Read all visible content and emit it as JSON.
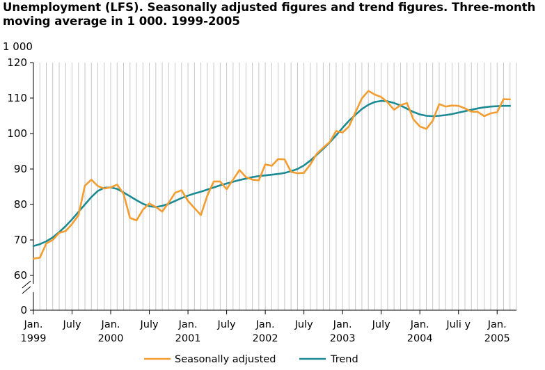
{
  "title_line1": "Unemployment (LFS). Seasonally adjusted figures and trend figures. Three-month",
  "title_line2": "moving average in 1 000. 1999-2005",
  "chart_data": {
    "type": "line",
    "title": "Unemployment (LFS). Seasonally adjusted figures and trend figures. Three-month moving average in 1 000. 1999-2005",
    "ylabel": "1 000",
    "xlabel": "",
    "ylim": [
      0,
      120
    ],
    "y_break": [
      0,
      60
    ],
    "yticks": [
      0,
      60,
      70,
      80,
      90,
      100,
      110,
      120
    ],
    "x_unit": "months since January 1999",
    "x_ticks": [
      {
        "pos": 0,
        "line1": "Jan.",
        "line2": "1999"
      },
      {
        "pos": 6,
        "line1": "July",
        "line2": ""
      },
      {
        "pos": 12,
        "line1": "Jan.",
        "line2": "2000"
      },
      {
        "pos": 18,
        "line1": "July",
        "line2": ""
      },
      {
        "pos": 24,
        "line1": "Jan.",
        "line2": "2001"
      },
      {
        "pos": 30,
        "line1": "July",
        "line2": ""
      },
      {
        "pos": 36,
        "line1": "Jan.",
        "line2": "2002"
      },
      {
        "pos": 42,
        "line1": "July",
        "line2": ""
      },
      {
        "pos": 48,
        "line1": "Jan.",
        "line2": "2003"
      },
      {
        "pos": 54,
        "line1": "July",
        "line2": ""
      },
      {
        "pos": 60,
        "line1": "Jan.",
        "line2": "2004"
      },
      {
        "pos": 66,
        "line1": "Juli y",
        "line2": ""
      },
      {
        "pos": 72,
        "line1": "Jan.",
        "line2": "2005"
      }
    ],
    "x_max": 75,
    "grid": "vertical",
    "legend_position": "bottom",
    "series": [
      {
        "name": "Seasonally adjusted",
        "color": "#f39c2f",
        "values": [
          64.7,
          65.0,
          69.0,
          70.0,
          72.0,
          72.5,
          74.5,
          77.0,
          85.3,
          87.0,
          85.2,
          84.5,
          84.8,
          85.6,
          83.0,
          76.2,
          75.5,
          78.5,
          80.3,
          79.3,
          78.0,
          80.5,
          83.3,
          84.0,
          81.0,
          79.0,
          77.0,
          82.5,
          86.5,
          86.5,
          84.3,
          87.0,
          89.7,
          87.7,
          87.0,
          86.8,
          91.3,
          90.9,
          92.8,
          92.7,
          89.2,
          88.8,
          88.9,
          91.3,
          94.3,
          96.0,
          97.6,
          100.7,
          100.3,
          102.0,
          106.0,
          109.9,
          112.0,
          111.0,
          110.3,
          108.8,
          106.7,
          108.0,
          108.6,
          104.0,
          102.0,
          101.3,
          103.6,
          108.3,
          107.6,
          107.9,
          107.8,
          107.1,
          106.2,
          106.1,
          104.9,
          105.7,
          106.0,
          109.7,
          109.6
        ]
      },
      {
        "name": "Trend",
        "color": "#1b8a92",
        "values": [
          68.3,
          68.8,
          69.6,
          70.7,
          72.2,
          73.9,
          75.8,
          77.9,
          80.0,
          82.1,
          83.8,
          84.7,
          84.8,
          84.4,
          83.4,
          82.3,
          81.2,
          80.2,
          79.5,
          79.3,
          79.6,
          80.2,
          81.0,
          81.8,
          82.5,
          83.1,
          83.6,
          84.2,
          84.8,
          85.4,
          85.9,
          86.4,
          86.9,
          87.3,
          87.7,
          88.0,
          88.2,
          88.4,
          88.6,
          88.9,
          89.4,
          90.0,
          91.0,
          92.4,
          94.0,
          95.7,
          97.5,
          99.5,
          101.6,
          103.6,
          105.3,
          106.9,
          108.1,
          108.9,
          109.2,
          109.1,
          108.6,
          107.9,
          107.0,
          106.1,
          105.4,
          105.0,
          104.9,
          105.0,
          105.2,
          105.5,
          105.9,
          106.3,
          106.7,
          107.1,
          107.4,
          107.6,
          107.7,
          107.8,
          107.8
        ]
      }
    ]
  }
}
